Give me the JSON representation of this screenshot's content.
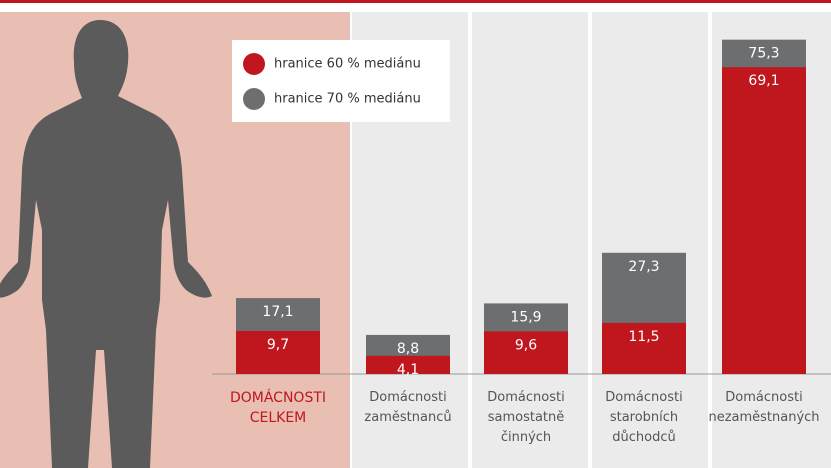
{
  "chart_data": {
    "type": "bar",
    "categories": [
      "DOMÁCNOSTI\nCELKEM",
      "Domácnosti\nzaměstnanců",
      "Domácnosti\nsamostatně\nčinných",
      "Domácnosti\nstarobních\ndůchodců",
      "Domácnosti\nnezaměstnaných"
    ],
    "series": [
      {
        "name": "hranice 70 % mediánu",
        "color": "#6d6e70",
        "values": [
          17.1,
          8.8,
          15.9,
          27.3,
          75.3
        ],
        "value_labels": [
          "17,1",
          "8,8",
          "15,9",
          "27,3",
          "75,3"
        ]
      },
      {
        "name": "hranice 60 % mediánu",
        "color": "#c0161e",
        "values": [
          9.7,
          4.1,
          9.6,
          11.5,
          69.1
        ],
        "value_labels": [
          "9,7",
          "4,1",
          "9,6",
          "11,5",
          "69,1"
        ]
      }
    ],
    "ylim": [
      0,
      80
    ]
  }
}
